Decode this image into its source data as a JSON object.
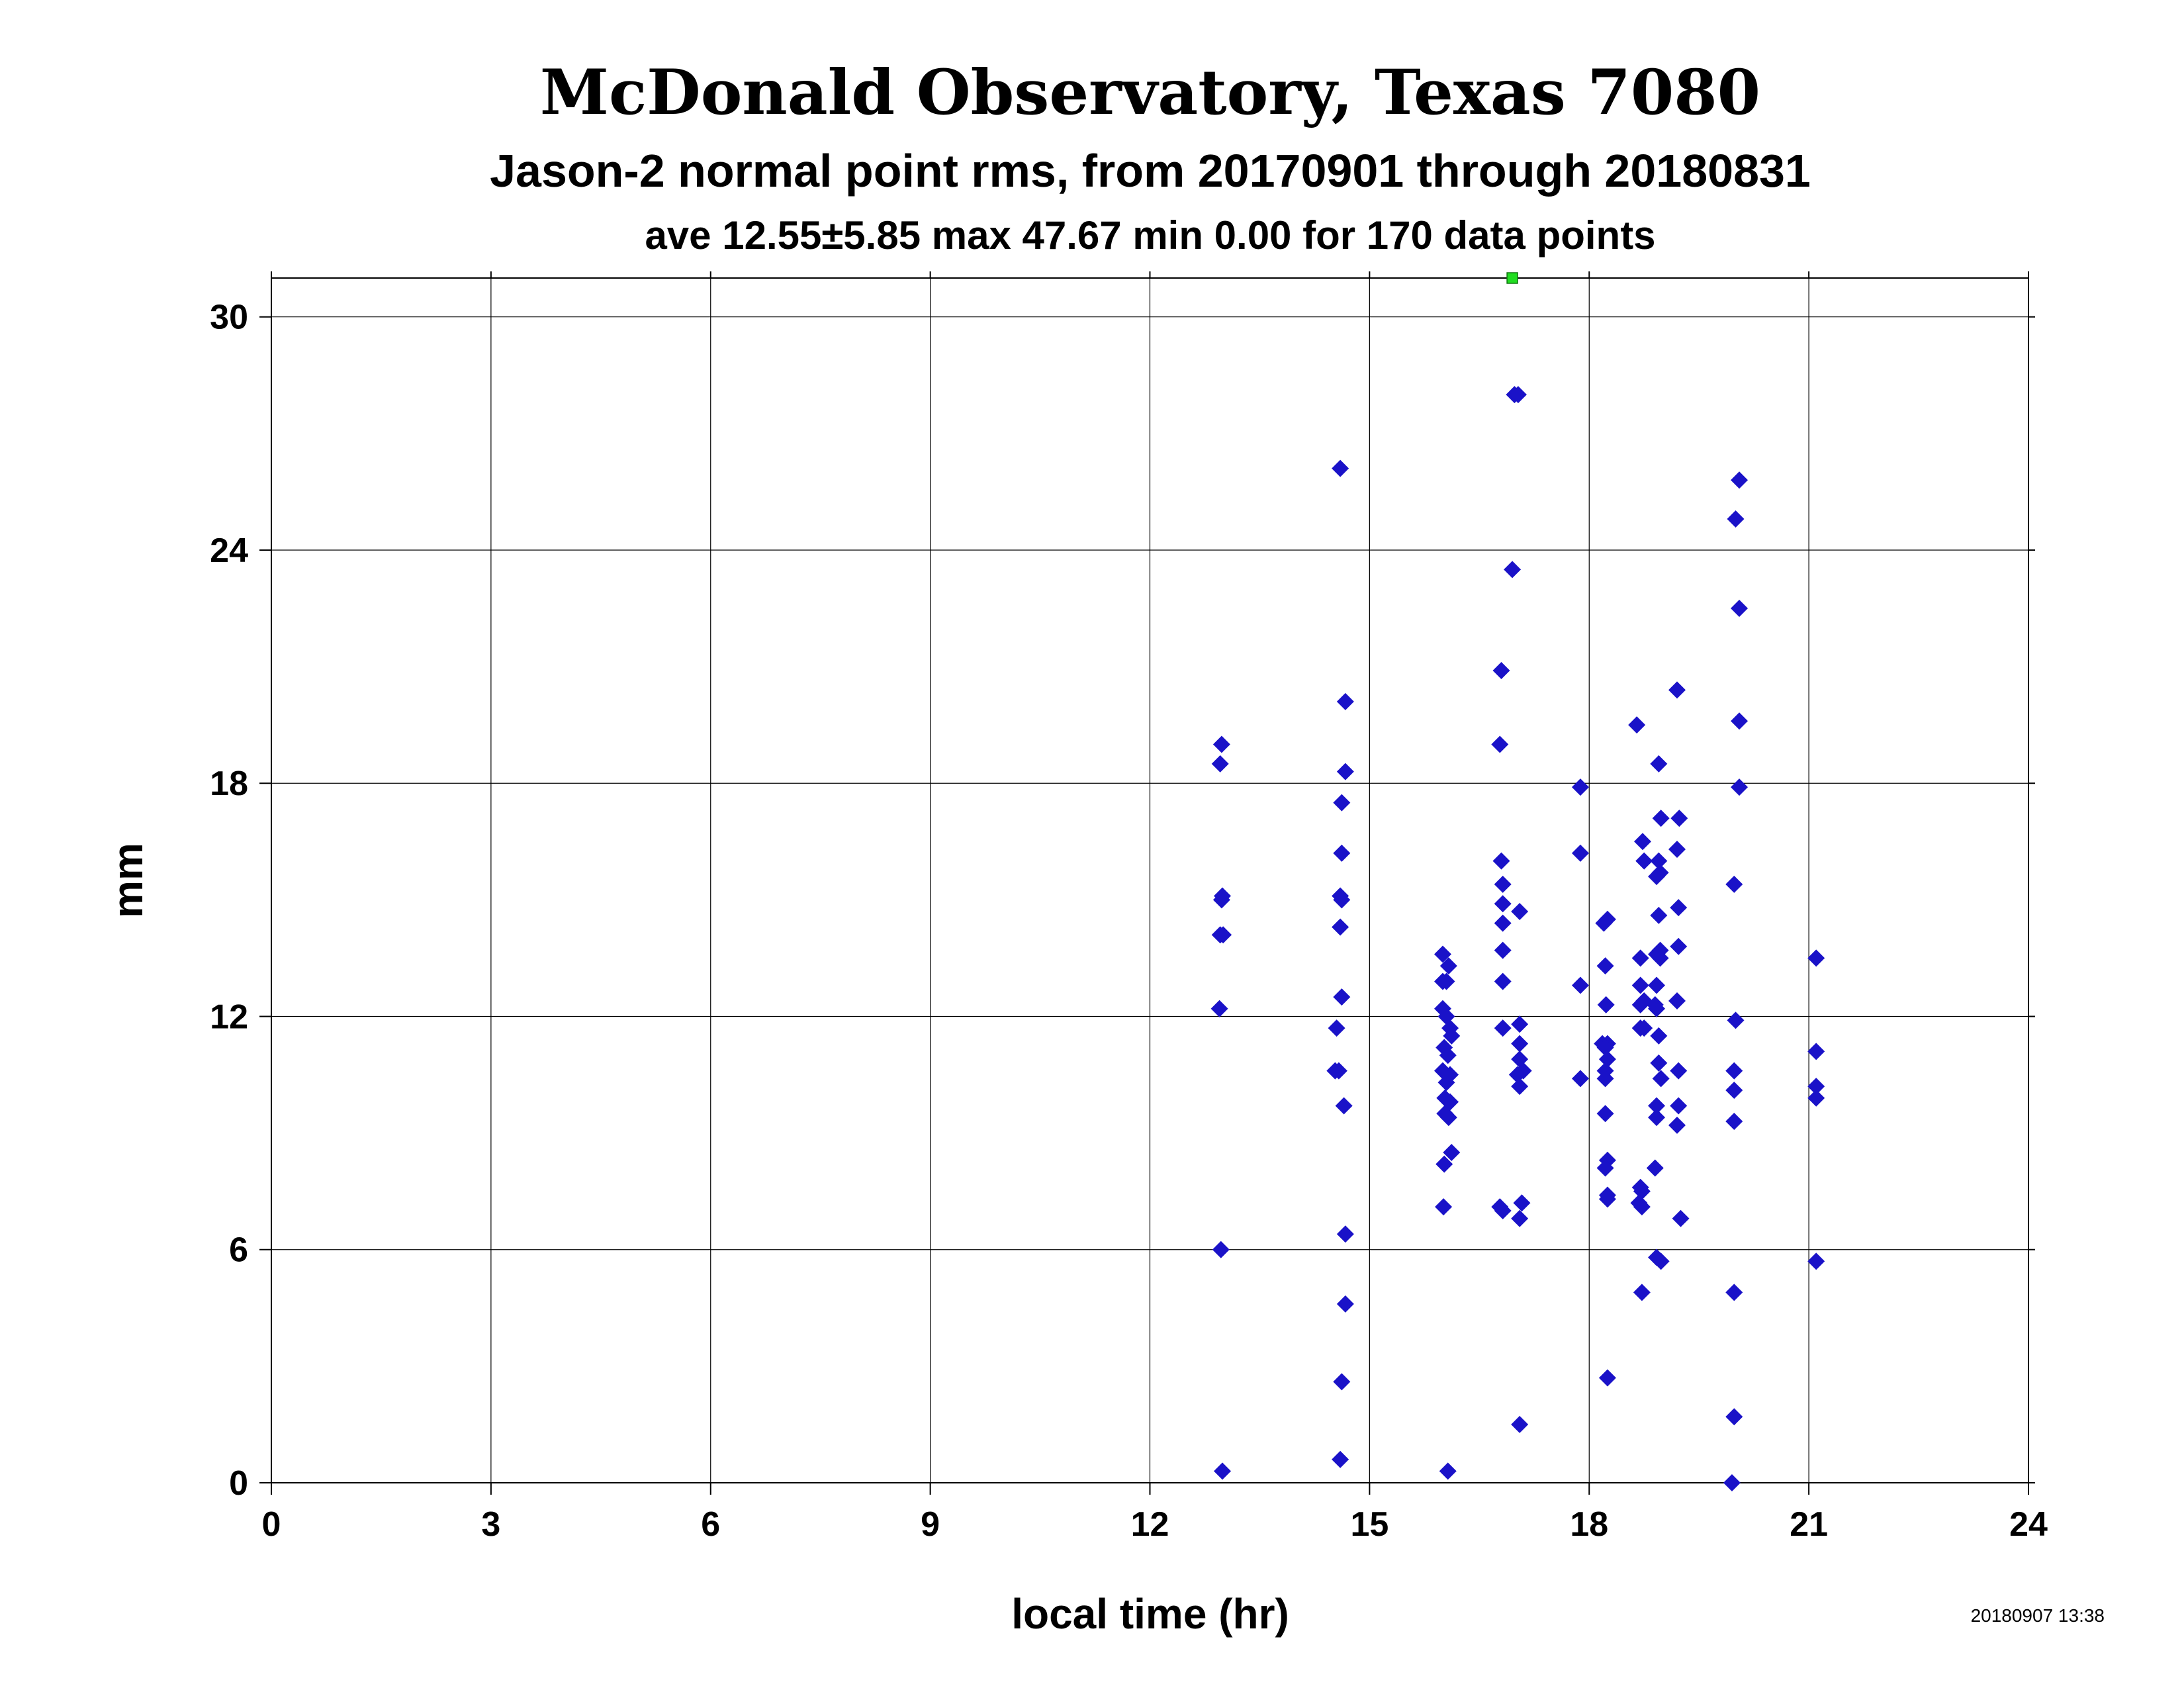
{
  "colors": {
    "title": "#0a4a12",
    "subtitle": "#4a0a0a",
    "text": "#000000",
    "point": "#1a12c8",
    "outlier": "#22dd22",
    "grid": "#000000"
  },
  "timestamp": "20180907 13:38",
  "chart_data": {
    "type": "scatter",
    "title": "McDonald Observatory, Texas 7080",
    "subtitle": "Jason-2 normal point rms, from 20170901 through 20180831",
    "summary": "ave 12.55±5.85 max 47.67 min 0.00 for 170 data points",
    "xlabel": "local time (hr)",
    "ylabel": "mm",
    "xlim": [
      0,
      24
    ],
    "ylim": [
      0,
      31
    ],
    "xticks": [
      0,
      3,
      6,
      9,
      12,
      15,
      18,
      21,
      24
    ],
    "xtick_labels": [
      "0",
      "3",
      "6",
      "9",
      "12",
      "15",
      "18",
      "21",
      "24"
    ],
    "yticks": [
      0,
      6,
      12,
      18,
      24,
      30
    ],
    "ytick_labels": [
      "0",
      "6",
      "12",
      "18",
      "24",
      "30"
    ],
    "grid": true,
    "legend": "none",
    "series": [
      {
        "marker": "diamond",
        "points": [
          [
            12.98,
            19.0
          ],
          [
            12.96,
            18.5
          ],
          [
            12.99,
            15.1
          ],
          [
            12.98,
            15.0
          ],
          [
            12.96,
            14.1
          ],
          [
            13.0,
            14.1
          ],
          [
            12.95,
            12.2
          ],
          [
            12.97,
            6.0
          ],
          [
            12.99,
            0.3
          ],
          [
            14.6,
            26.1
          ],
          [
            14.67,
            20.1
          ],
          [
            14.67,
            18.3
          ],
          [
            14.62,
            17.5
          ],
          [
            14.62,
            16.2
          ],
          [
            14.6,
            15.1
          ],
          [
            14.62,
            15.0
          ],
          [
            14.6,
            14.3
          ],
          [
            14.62,
            12.5
          ],
          [
            14.55,
            11.7
          ],
          [
            14.53,
            10.6
          ],
          [
            14.58,
            10.6
          ],
          [
            14.65,
            9.7
          ],
          [
            14.67,
            6.4
          ],
          [
            14.67,
            4.6
          ],
          [
            14.62,
            2.6
          ],
          [
            14.6,
            0.6
          ],
          [
            16.0,
            13.6
          ],
          [
            16.08,
            13.3
          ],
          [
            16.0,
            12.9
          ],
          [
            16.05,
            12.9
          ],
          [
            16.0,
            12.2
          ],
          [
            16.05,
            12.0
          ],
          [
            16.1,
            11.7
          ],
          [
            16.12,
            11.5
          ],
          [
            16.02,
            11.2
          ],
          [
            16.07,
            11.0
          ],
          [
            16.0,
            10.6
          ],
          [
            16.1,
            10.5
          ],
          [
            16.05,
            10.3
          ],
          [
            16.03,
            9.9
          ],
          [
            16.1,
            9.8
          ],
          [
            16.03,
            9.5
          ],
          [
            16.08,
            9.4
          ],
          [
            16.12,
            8.5
          ],
          [
            16.02,
            8.2
          ],
          [
            16.01,
            7.1
          ],
          [
            16.07,
            0.3
          ],
          [
            16.98,
            28.0
          ],
          [
            17.03,
            28.0
          ],
          [
            16.95,
            23.5
          ],
          [
            16.8,
            20.9
          ],
          [
            16.78,
            19.0
          ],
          [
            16.8,
            16.0
          ],
          [
            16.82,
            15.4
          ],
          [
            16.82,
            14.9
          ],
          [
            16.82,
            14.4
          ],
          [
            17.05,
            14.7
          ],
          [
            16.82,
            13.7
          ],
          [
            16.82,
            12.9
          ],
          [
            17.05,
            11.8
          ],
          [
            16.82,
            11.7
          ],
          [
            17.05,
            11.3
          ],
          [
            17.05,
            10.9
          ],
          [
            17.1,
            10.6
          ],
          [
            17.02,
            10.5
          ],
          [
            17.05,
            10.2
          ],
          [
            16.78,
            7.1
          ],
          [
            16.82,
            7.0
          ],
          [
            17.08,
            7.2
          ],
          [
            17.05,
            6.8
          ],
          [
            17.05,
            1.5
          ],
          [
            17.88,
            17.9
          ],
          [
            17.88,
            16.2
          ],
          [
            17.88,
            12.8
          ],
          [
            17.88,
            10.4
          ],
          [
            18.2,
            14.4
          ],
          [
            18.25,
            14.5
          ],
          [
            18.22,
            13.3
          ],
          [
            18.23,
            12.3
          ],
          [
            18.18,
            11.3
          ],
          [
            18.25,
            11.3
          ],
          [
            18.22,
            11.2
          ],
          [
            18.25,
            10.9
          ],
          [
            18.22,
            10.6
          ],
          [
            18.22,
            10.4
          ],
          [
            18.22,
            9.5
          ],
          [
            18.25,
            8.3
          ],
          [
            18.22,
            8.1
          ],
          [
            18.25,
            7.4
          ],
          [
            18.25,
            7.3
          ],
          [
            18.25,
            2.7
          ],
          [
            18.65,
            19.5
          ],
          [
            18.73,
            16.5
          ],
          [
            18.75,
            16.0
          ],
          [
            18.7,
            13.5
          ],
          [
            18.7,
            12.8
          ],
          [
            18.75,
            12.4
          ],
          [
            18.7,
            12.3
          ],
          [
            18.7,
            11.7
          ],
          [
            18.75,
            11.7
          ],
          [
            18.7,
            7.6
          ],
          [
            18.72,
            7.5
          ],
          [
            18.68,
            7.2
          ],
          [
            18.72,
            7.1
          ],
          [
            18.72,
            4.9
          ],
          [
            18.95,
            18.5
          ],
          [
            18.98,
            17.1
          ],
          [
            18.95,
            16.0
          ],
          [
            18.92,
            15.6
          ],
          [
            18.97,
            15.7
          ],
          [
            18.95,
            14.6
          ],
          [
            18.92,
            13.6
          ],
          [
            18.97,
            13.7
          ],
          [
            18.97,
            13.5
          ],
          [
            18.92,
            12.8
          ],
          [
            18.92,
            12.2
          ],
          [
            18.9,
            12.3
          ],
          [
            18.95,
            11.5
          ],
          [
            18.95,
            10.8
          ],
          [
            18.98,
            10.4
          ],
          [
            18.92,
            9.7
          ],
          [
            18.92,
            9.4
          ],
          [
            18.9,
            8.1
          ],
          [
            18.92,
            5.8
          ],
          [
            18.98,
            5.7
          ],
          [
            19.2,
            20.4
          ],
          [
            19.23,
            17.1
          ],
          [
            19.2,
            16.3
          ],
          [
            19.22,
            14.8
          ],
          [
            19.22,
            13.8
          ],
          [
            19.2,
            12.4
          ],
          [
            19.22,
            10.6
          ],
          [
            19.22,
            9.7
          ],
          [
            19.2,
            9.2
          ],
          [
            19.25,
            6.8
          ],
          [
            20.05,
            25.8
          ],
          [
            20.0,
            24.8
          ],
          [
            20.05,
            22.5
          ],
          [
            20.05,
            19.6
          ],
          [
            20.05,
            17.9
          ],
          [
            19.98,
            15.4
          ],
          [
            20.0,
            11.9
          ],
          [
            19.98,
            10.6
          ],
          [
            19.98,
            10.1
          ],
          [
            19.98,
            9.3
          ],
          [
            19.98,
            4.9
          ],
          [
            19.98,
            1.7
          ],
          [
            19.95,
            0.0
          ],
          [
            21.1,
            13.5
          ],
          [
            21.1,
            11.1
          ],
          [
            21.1,
            10.2
          ],
          [
            21.1,
            9.9
          ],
          [
            21.1,
            5.7
          ]
        ]
      },
      {
        "marker": "square",
        "points": [
          [
            16.95,
            31.0
          ]
        ]
      }
    ]
  }
}
